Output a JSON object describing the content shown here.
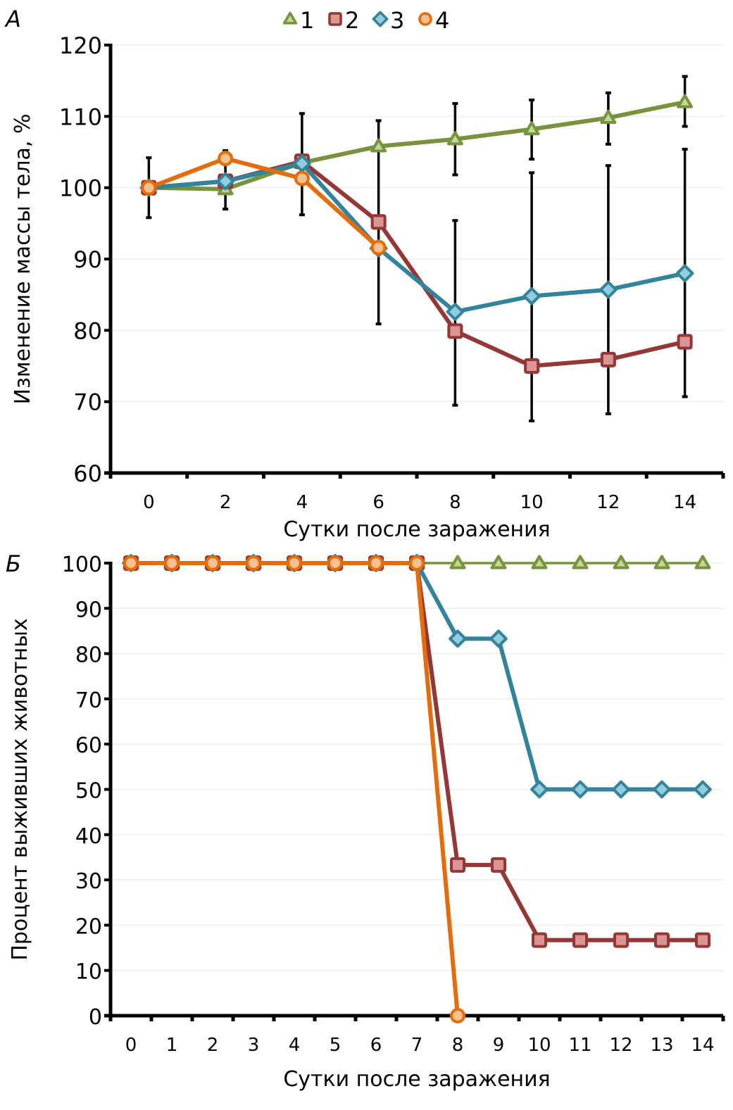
{
  "colors": {
    "s1": {
      "stroke": "#77933c",
      "fill": "#c3d69b"
    },
    "s2": {
      "stroke": "#953735",
      "fill": "#d99694"
    },
    "s3": {
      "stroke": "#31849b",
      "fill": "#93cddd"
    },
    "s4": {
      "stroke": "#e46c0a",
      "fill": "#fac090"
    },
    "grid": "#eeeeee",
    "axis": "#000000"
  },
  "legend": [
    {
      "label": "1",
      "marker": "triangle"
    },
    {
      "label": "2",
      "marker": "square"
    },
    {
      "label": "3",
      "marker": "diamond"
    },
    {
      "label": "4",
      "marker": "circle"
    }
  ],
  "chart_data": [
    {
      "panel": "А",
      "type": "line",
      "title": "",
      "xlabel": "Сутки после заражения",
      "ylabel": "Изменение массы тела, %",
      "categories": [
        "0",
        "2",
        "4",
        "6",
        "8",
        "10",
        "12",
        "14"
      ],
      "ylim": [
        60,
        120
      ],
      "yticks": [
        "60",
        "70",
        "80",
        "90",
        "100",
        "110",
        "120"
      ],
      "grid": true,
      "legend_position": "top-center",
      "series": [
        {
          "name": "1",
          "values": [
            100,
            99.8,
            103.5,
            105.8,
            106.8,
            108.2,
            109.8,
            112.0
          ]
        },
        {
          "name": "2",
          "values": [
            100,
            100.9,
            103.7,
            95.2,
            79.9,
            75.0,
            75.9,
            78.4
          ]
        },
        {
          "name": "3",
          "values": [
            100,
            100.9,
            103.4,
            91.5,
            82.6,
            84.8,
            85.7,
            88.0
          ]
        },
        {
          "name": "4",
          "values": [
            100,
            104.1,
            101.3,
            91.6,
            null,
            null,
            null,
            null
          ]
        }
      ],
      "error_bars": [
        {
          "x": "0",
          "low": 95.8,
          "high": 104.2
        },
        {
          "x": "2",
          "low": 97.0,
          "high": 105.2
        },
        {
          "x": "4",
          "low": 96.2,
          "high": 110.4
        },
        {
          "x": "6",
          "low": 80.9,
          "high": 109.4
        },
        {
          "x": "8",
          "low": 101.8,
          "high": 111.8
        },
        {
          "x": "8",
          "low": 69.5,
          "high": 95.4
        },
        {
          "x": "10",
          "low": 104.0,
          "high": 112.3
        },
        {
          "x": "10",
          "low": 67.3,
          "high": 102.1
        },
        {
          "x": "12",
          "low": 106.1,
          "high": 113.3
        },
        {
          "x": "12",
          "low": 68.3,
          "high": 103.1
        },
        {
          "x": "14",
          "low": 108.6,
          "high": 115.6
        },
        {
          "x": "14",
          "low": 70.7,
          "high": 105.4
        }
      ]
    },
    {
      "panel": "Б",
      "type": "line",
      "title": "",
      "xlabel": "Сутки после заражения",
      "ylabel": "Процент выживших животных",
      "categories": [
        "0",
        "1",
        "2",
        "3",
        "4",
        "5",
        "6",
        "7",
        "8",
        "9",
        "10",
        "11",
        "12",
        "13",
        "14"
      ],
      "ylim": [
        0,
        100
      ],
      "yticks": [
        "0",
        "10",
        "20",
        "30",
        "40",
        "50",
        "60",
        "70",
        "80",
        "90",
        "100"
      ],
      "grid": true,
      "series": [
        {
          "name": "1",
          "values": [
            100,
            100,
            100,
            100,
            100,
            100,
            100,
            100,
            100,
            100,
            100,
            100,
            100,
            100,
            100
          ]
        },
        {
          "name": "2",
          "values": [
            100,
            100,
            100,
            100,
            100,
            100,
            100,
            100,
            33.3,
            33.3,
            16.7,
            16.7,
            16.7,
            16.7,
            16.7
          ]
        },
        {
          "name": "3",
          "values": [
            100,
            100,
            100,
            100,
            100,
            100,
            100,
            100,
            83.3,
            83.3,
            50,
            50,
            50,
            50,
            50
          ]
        },
        {
          "name": "4",
          "values": [
            100,
            100,
            100,
            100,
            100,
            100,
            100,
            100,
            0,
            null,
            null,
            null,
            null,
            null,
            null
          ]
        }
      ]
    }
  ]
}
